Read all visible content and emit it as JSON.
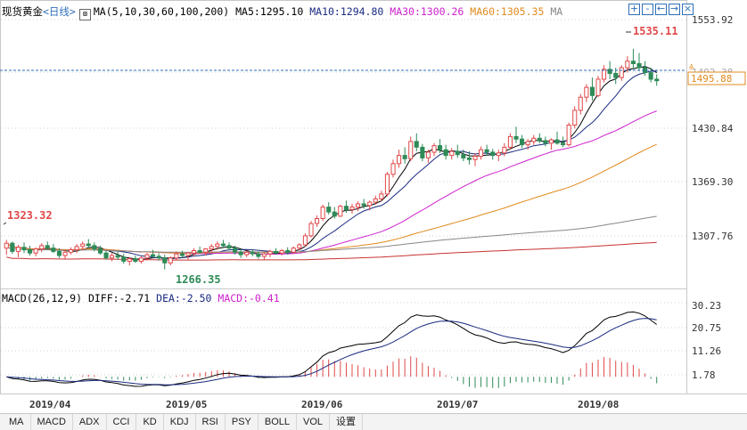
{
  "header": {
    "instrument": "现货黄金",
    "period": "<日线>",
    "ma_label": "MA(5,10,30,60,100,200)",
    "ma5": "MA5:1295.10",
    "ma10": "MA10:1294.80",
    "ma30": "MA30:1300.26",
    "ma60": "MA60:1305.35",
    "ma_tail": "MA"
  },
  "macd_header": {
    "params": "MACD(26,12,9)",
    "diff": "DIFF:-2.71",
    "dea": "DEA:-2.50",
    "macd": "MACD:-0.41"
  },
  "controls": [
    "+",
    "-",
    "←",
    "→",
    "×"
  ],
  "tabs": [
    "MA",
    "MACD",
    "ADX",
    "CCI",
    "KD",
    "KDJ",
    "RSI",
    "PSY",
    "BOLL",
    "VOL",
    "设置"
  ],
  "colors": {
    "up": "#e0484a",
    "down": "#2e8b57",
    "ma5": "#000000",
    "ma10": "#1a2a80",
    "ma30": "#cc22cc",
    "ma60": "#e08a1e",
    "ma100": "#888888",
    "ma200": "#c83232",
    "price_tag": "#e08a1e",
    "grid": "#d0d0d0"
  },
  "chart_data": {
    "type": "candlestick",
    "y_ticks": [
      "1553.92",
      "1492.38",
      "1430.84",
      "1369.30",
      "1307.76"
    ],
    "ylim": [
      1245,
      1575
    ],
    "x_labels": [
      "2019/04",
      "2019/05",
      "2019/06",
      "2019/07",
      "2019/08"
    ],
    "current_price": "1495.88",
    "annotations": {
      "high": "1535.11",
      "low": "1266.35",
      "start": "1323.32"
    },
    "ohlc": [
      [
        1292,
        1302,
        1284,
        1298
      ],
      [
        1298,
        1300,
        1285,
        1288
      ],
      [
        1288,
        1296,
        1281,
        1293
      ],
      [
        1293,
        1299,
        1286,
        1290
      ],
      [
        1290,
        1295,
        1283,
        1286
      ],
      [
        1286,
        1293,
        1282,
        1291
      ],
      [
        1291,
        1298,
        1287,
        1295
      ],
      [
        1295,
        1300,
        1290,
        1292
      ],
      [
        1292,
        1297,
        1286,
        1288
      ],
      [
        1288,
        1292,
        1280,
        1283
      ],
      [
        1283,
        1290,
        1279,
        1287
      ],
      [
        1287,
        1293,
        1284,
        1290
      ],
      [
        1290,
        1297,
        1286,
        1294
      ],
      [
        1294,
        1300,
        1290,
        1297
      ],
      [
        1297,
        1303,
        1292,
        1295
      ],
      [
        1295,
        1299,
        1288,
        1291
      ],
      [
        1291,
        1295,
        1284,
        1286
      ],
      [
        1286,
        1289,
        1278,
        1280
      ],
      [
        1280,
        1286,
        1276,
        1283
      ],
      [
        1283,
        1288,
        1278,
        1281
      ],
      [
        1281,
        1285,
        1273,
        1276
      ],
      [
        1276,
        1281,
        1271,
        1279
      ],
      [
        1279,
        1283,
        1274,
        1276
      ],
      [
        1276,
        1282,
        1273,
        1280
      ],
      [
        1280,
        1286,
        1277,
        1284
      ],
      [
        1284,
        1290,
        1280,
        1282
      ],
      [
        1282,
        1286,
        1277,
        1280
      ],
      [
        1280,
        1284,
        1266,
        1274
      ],
      [
        1274,
        1282,
        1271,
        1280
      ],
      [
        1280,
        1288,
        1277,
        1285
      ],
      [
        1285,
        1289,
        1280,
        1283
      ],
      [
        1283,
        1287,
        1278,
        1286
      ],
      [
        1286,
        1292,
        1282,
        1289
      ],
      [
        1289,
        1294,
        1285,
        1287
      ],
      [
        1287,
        1292,
        1283,
        1291
      ],
      [
        1291,
        1297,
        1287,
        1294
      ],
      [
        1294,
        1300,
        1290,
        1297
      ],
      [
        1297,
        1302,
        1292,
        1295
      ],
      [
        1295,
        1299,
        1289,
        1292
      ],
      [
        1292,
        1295,
        1284,
        1287
      ],
      [
        1287,
        1291,
        1280,
        1284
      ],
      [
        1284,
        1289,
        1281,
        1287
      ],
      [
        1287,
        1291,
        1282,
        1285
      ],
      [
        1285,
        1288,
        1279,
        1282
      ],
      [
        1282,
        1287,
        1278,
        1285
      ],
      [
        1285,
        1290,
        1281,
        1288
      ],
      [
        1288,
        1292,
        1284,
        1286
      ],
      [
        1286,
        1291,
        1283,
        1289
      ],
      [
        1289,
        1293,
        1284,
        1287
      ],
      [
        1287,
        1294,
        1285,
        1292
      ],
      [
        1292,
        1298,
        1289,
        1296
      ],
      [
        1296,
        1310,
        1294,
        1307
      ],
      [
        1307,
        1325,
        1305,
        1322
      ],
      [
        1322,
        1332,
        1318,
        1328
      ],
      [
        1328,
        1345,
        1325,
        1342
      ],
      [
        1342,
        1348,
        1333,
        1336
      ],
      [
        1336,
        1342,
        1328,
        1331
      ],
      [
        1331,
        1345,
        1330,
        1343
      ],
      [
        1343,
        1350,
        1335,
        1339
      ],
      [
        1339,
        1346,
        1334,
        1342
      ],
      [
        1342,
        1349,
        1337,
        1346
      ],
      [
        1346,
        1352,
        1340,
        1344
      ],
      [
        1344,
        1350,
        1338,
        1348
      ],
      [
        1348,
        1356,
        1345,
        1352
      ],
      [
        1352,
        1362,
        1349,
        1358
      ],
      [
        1358,
        1385,
        1355,
        1382
      ],
      [
        1382,
        1400,
        1378,
        1395
      ],
      [
        1395,
        1412,
        1390,
        1405
      ],
      [
        1405,
        1415,
        1395,
        1401
      ],
      [
        1401,
        1428,
        1398,
        1422
      ],
      [
        1422,
        1432,
        1410,
        1415
      ],
      [
        1415,
        1419,
        1398,
        1402
      ],
      [
        1402,
        1412,
        1396,
        1409
      ],
      [
        1409,
        1420,
        1404,
        1417
      ],
      [
        1417,
        1425,
        1408,
        1412
      ],
      [
        1412,
        1418,
        1400,
        1405
      ],
      [
        1405,
        1414,
        1400,
        1410
      ],
      [
        1410,
        1418,
        1402,
        1406
      ],
      [
        1406,
        1412,
        1398,
        1402
      ],
      [
        1402,
        1410,
        1394,
        1400
      ],
      [
        1400,
        1408,
        1392,
        1404
      ],
      [
        1404,
        1416,
        1400,
        1412
      ],
      [
        1412,
        1418,
        1405,
        1409
      ],
      [
        1409,
        1413,
        1400,
        1405
      ],
      [
        1405,
        1412,
        1398,
        1408
      ],
      [
        1408,
        1420,
        1404,
        1415
      ],
      [
        1415,
        1432,
        1412,
        1428
      ],
      [
        1428,
        1440,
        1420,
        1425
      ],
      [
        1425,
        1430,
        1414,
        1418
      ],
      [
        1418,
        1425,
        1412,
        1422
      ],
      [
        1422,
        1430,
        1418,
        1426
      ],
      [
        1426,
        1432,
        1420,
        1423
      ],
      [
        1423,
        1428,
        1416,
        1420
      ],
      [
        1420,
        1426,
        1412,
        1424
      ],
      [
        1424,
        1434,
        1418,
        1420
      ],
      [
        1420,
        1428,
        1415,
        1418
      ],
      [
        1418,
        1445,
        1416,
        1442
      ],
      [
        1442,
        1465,
        1438,
        1460
      ],
      [
        1460,
        1480,
        1455,
        1476
      ],
      [
        1476,
        1492,
        1470,
        1488
      ],
      [
        1488,
        1500,
        1472,
        1478
      ],
      [
        1478,
        1502,
        1476,
        1498
      ],
      [
        1498,
        1515,
        1494,
        1510
      ],
      [
        1510,
        1520,
        1498,
        1505
      ],
      [
        1505,
        1512,
        1492,
        1500
      ],
      [
        1500,
        1515,
        1496,
        1512
      ],
      [
        1512,
        1526,
        1506,
        1520
      ],
      [
        1520,
        1535,
        1510,
        1517
      ],
      [
        1517,
        1530,
        1508,
        1512
      ],
      [
        1512,
        1520,
        1502,
        1506
      ],
      [
        1506,
        1512,
        1494,
        1498
      ],
      [
        1498,
        1504,
        1490,
        1496
      ]
    ],
    "macd_ticks": [
      "30.23",
      "20.75",
      "11.26",
      "1.78"
    ],
    "macd_ylim": [
      -6,
      34
    ]
  }
}
